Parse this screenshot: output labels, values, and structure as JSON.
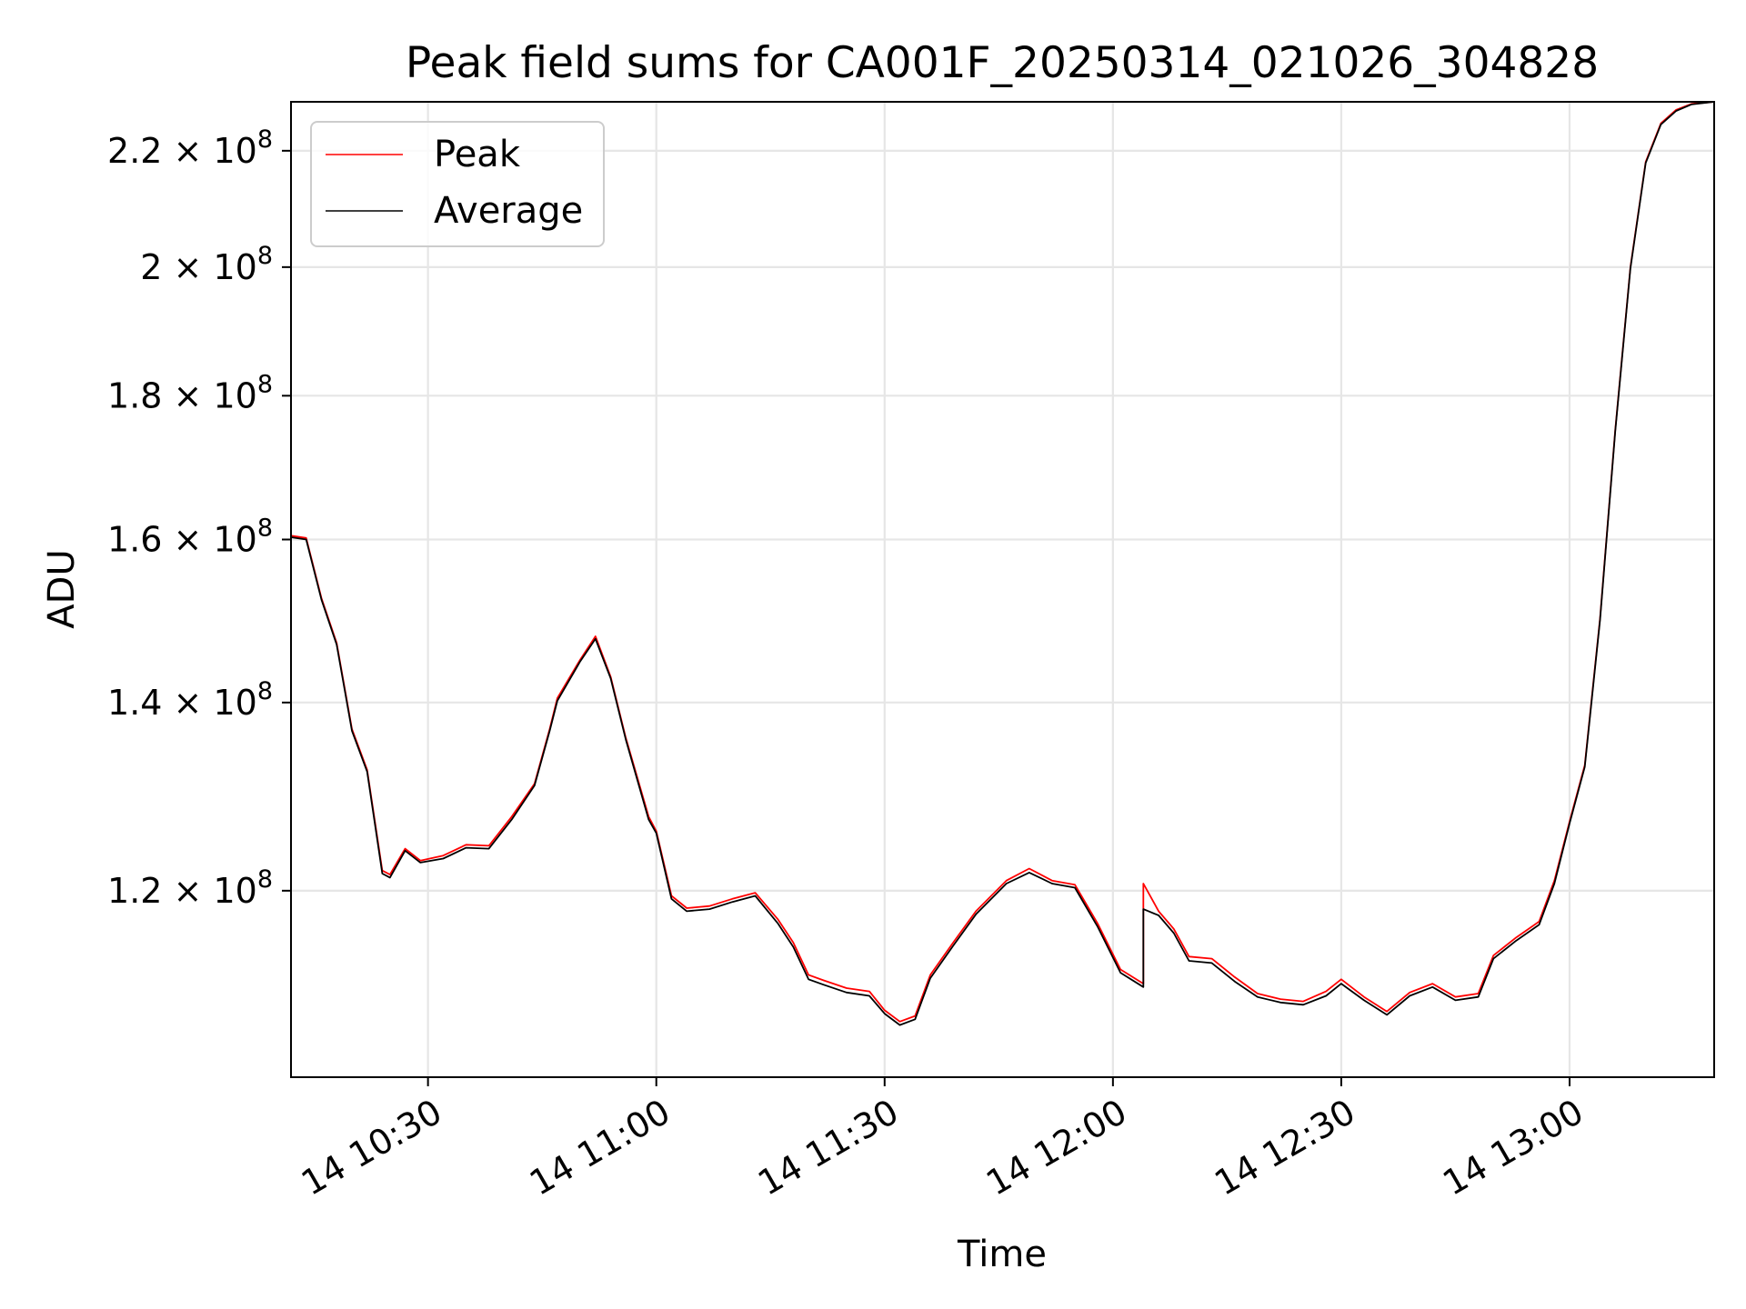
{
  "chart_data": {
    "type": "line",
    "title": "Peak field sums for CA001F_20250314_021026_304828",
    "xlabel": "Time",
    "ylabel": "ADU",
    "y_scale": "log",
    "ylim": [
      103000000,
      229000000
    ],
    "xlim": [
      "14 10:12",
      "14 13:19"
    ],
    "grid": true,
    "legend_position": "upper left",
    "x_ticks": [
      {
        "time": "14 10:30",
        "label": "14 10:30"
      },
      {
        "time": "14 11:00",
        "label": "14 11:00"
      },
      {
        "time": "14 11:30",
        "label": "14 11:30"
      },
      {
        "time": "14 12:00",
        "label": "14 12:00"
      },
      {
        "time": "14 12:30",
        "label": "14 12:30"
      },
      {
        "time": "14 13:00",
        "label": "14 13:00"
      }
    ],
    "y_ticks": [
      {
        "value": 120000000,
        "mantissa": "1.2",
        "base": "10",
        "exp": "8"
      },
      {
        "value": 140000000,
        "mantissa": "1.4",
        "base": "10",
        "exp": "8"
      },
      {
        "value": 160000000,
        "mantissa": "1.6",
        "base": "10",
        "exp": "8"
      },
      {
        "value": 180000000,
        "mantissa": "1.8",
        "base": "10",
        "exp": "8"
      },
      {
        "value": 200000000,
        "mantissa": "2",
        "base": "10",
        "exp": "8"
      },
      {
        "value": 220000000,
        "mantissa": "2.2",
        "base": "10",
        "exp": "8"
      }
    ],
    "series": [
      {
        "name": "Peak",
        "color": "#ff0000",
        "points": [
          [
            "14 10:12",
            160500000
          ],
          [
            "14 10:14",
            160200000
          ],
          [
            "14 10:16",
            152500000
          ],
          [
            "14 10:18",
            147000000
          ],
          [
            "14 10:20",
            137000000
          ],
          [
            "14 10:22",
            132500000
          ],
          [
            "14 10:24",
            122000000
          ],
          [
            "14 10:25",
            121600000
          ],
          [
            "14 10:27",
            124200000
          ],
          [
            "14 10:29",
            123000000
          ],
          [
            "14 10:32",
            123500000
          ],
          [
            "14 10:35",
            124600000
          ],
          [
            "14 10:38",
            124500000
          ],
          [
            "14 10:41",
            127500000
          ],
          [
            "14 10:44",
            131000000
          ],
          [
            "14 10:46",
            137000000
          ],
          [
            "14 10:47",
            140500000
          ],
          [
            "14 10:50",
            145000000
          ],
          [
            "14 10:52",
            147800000
          ],
          [
            "14 10:54",
            143000000
          ],
          [
            "14 10:56",
            136000000
          ],
          [
            "14 10:59",
            127500000
          ],
          [
            "14 11:00",
            126000000
          ],
          [
            "14 11:02",
            119500000
          ],
          [
            "14 11:04",
            118300000
          ],
          [
            "14 11:07",
            118500000
          ],
          [
            "14 11:10",
            119200000
          ],
          [
            "14 11:13",
            119800000
          ],
          [
            "14 11:16",
            117200000
          ],
          [
            "14 11:18",
            115000000
          ],
          [
            "14 11:20",
            112000000
          ],
          [
            "14 11:22",
            111500000
          ],
          [
            "14 11:25",
            110800000
          ],
          [
            "14 11:28",
            110500000
          ],
          [
            "14 11:30",
            108800000
          ],
          [
            "14 11:32",
            107800000
          ],
          [
            "14 11:34",
            108300000
          ],
          [
            "14 11:36",
            112000000
          ],
          [
            "14 11:39",
            115000000
          ],
          [
            "14 11:42",
            118000000
          ],
          [
            "14 11:46",
            121000000
          ],
          [
            "14 11:49",
            122200000
          ],
          [
            "14 11:52",
            121000000
          ],
          [
            "14 11:55",
            120600000
          ],
          [
            "14 11:58",
            116800000
          ],
          [
            "14 12:01",
            112500000
          ],
          [
            "14 12:04",
            111200000
          ],
          [
            "14 12:04",
            120700000
          ],
          [
            "14 12:06",
            118000000
          ],
          [
            "14 12:08",
            116300000
          ],
          [
            "14 12:10",
            113700000
          ],
          [
            "14 12:13",
            113500000
          ],
          [
            "14 12:16",
            111800000
          ],
          [
            "14 12:19",
            110300000
          ],
          [
            "14 12:22",
            109800000
          ],
          [
            "14 12:25",
            109600000
          ],
          [
            "14 12:28",
            110500000
          ],
          [
            "14 12:30",
            111600000
          ],
          [
            "14 12:33",
            110000000
          ],
          [
            "14 12:36",
            108700000
          ],
          [
            "14 12:39",
            110400000
          ],
          [
            "14 12:42",
            111200000
          ],
          [
            "14 12:45",
            110000000
          ],
          [
            "14 12:48",
            110300000
          ],
          [
            "14 12:50",
            113800000
          ],
          [
            "14 12:53",
            115500000
          ],
          [
            "14 12:56",
            117000000
          ],
          [
            "14 12:58",
            121000000
          ],
          [
            "14 13:00",
            127000000
          ],
          [
            "14 13:02",
            133000000
          ],
          [
            "14 13:04",
            150000000
          ],
          [
            "14 13:06",
            175000000
          ],
          [
            "14 13:08",
            200000000
          ],
          [
            "14 13:10",
            218000000
          ],
          [
            "14 13:12",
            225000000
          ],
          [
            "14 13:14",
            227500000
          ],
          [
            "14 13:16",
            228600000
          ],
          [
            "14 13:19",
            229000000
          ]
        ]
      },
      {
        "name": "Average",
        "color": "#000000",
        "points": [
          [
            "14 10:12",
            160300000
          ],
          [
            "14 10:14",
            160000000
          ],
          [
            "14 10:16",
            152300000
          ],
          [
            "14 10:18",
            146800000
          ],
          [
            "14 10:20",
            136800000
          ],
          [
            "14 10:22",
            132300000
          ],
          [
            "14 10:24",
            121700000
          ],
          [
            "14 10:25",
            121300000
          ],
          [
            "14 10:27",
            124000000
          ],
          [
            "14 10:29",
            122800000
          ],
          [
            "14 10:32",
            123200000
          ],
          [
            "14 10:35",
            124300000
          ],
          [
            "14 10:38",
            124200000
          ],
          [
            "14 10:41",
            127200000
          ],
          [
            "14 10:44",
            130800000
          ],
          [
            "14 10:46",
            136800000
          ],
          [
            "14 10:47",
            140200000
          ],
          [
            "14 10:50",
            144800000
          ],
          [
            "14 10:52",
            147500000
          ],
          [
            "14 10:54",
            142800000
          ],
          [
            "14 10:56",
            135800000
          ],
          [
            "14 10:59",
            127200000
          ],
          [
            "14 11:00",
            125800000
          ],
          [
            "14 11:02",
            119200000
          ],
          [
            "14 11:04",
            118000000
          ],
          [
            "14 11:07",
            118200000
          ],
          [
            "14 11:10",
            118900000
          ],
          [
            "14 11:13",
            119500000
          ],
          [
            "14 11:16",
            116800000
          ],
          [
            "14 11:18",
            114600000
          ],
          [
            "14 11:20",
            111600000
          ],
          [
            "14 11:22",
            111100000
          ],
          [
            "14 11:25",
            110400000
          ],
          [
            "14 11:28",
            110100000
          ],
          [
            "14 11:30",
            108500000
          ],
          [
            "14 11:32",
            107500000
          ],
          [
            "14 11:34",
            108000000
          ],
          [
            "14 11:36",
            111700000
          ],
          [
            "14 11:39",
            114700000
          ],
          [
            "14 11:42",
            117700000
          ],
          [
            "14 11:46",
            120700000
          ],
          [
            "14 11:49",
            121800000
          ],
          [
            "14 11:52",
            120700000
          ],
          [
            "14 11:55",
            120300000
          ],
          [
            "14 11:58",
            116500000
          ],
          [
            "14 12:01",
            112200000
          ],
          [
            "14 12:04",
            110900000
          ],
          [
            "14 12:04",
            118200000
          ],
          [
            "14 12:06",
            117600000
          ],
          [
            "14 12:08",
            115900000
          ],
          [
            "14 12:10",
            113300000
          ],
          [
            "14 12:13",
            113100000
          ],
          [
            "14 12:16",
            111400000
          ],
          [
            "14 12:19",
            110000000
          ],
          [
            "14 12:22",
            109500000
          ],
          [
            "14 12:25",
            109300000
          ],
          [
            "14 12:28",
            110100000
          ],
          [
            "14 12:30",
            111200000
          ],
          [
            "14 12:33",
            109700000
          ],
          [
            "14 12:36",
            108400000
          ],
          [
            "14 12:39",
            110100000
          ],
          [
            "14 12:42",
            110900000
          ],
          [
            "14 12:45",
            109700000
          ],
          [
            "14 12:48",
            110000000
          ],
          [
            "14 12:50",
            113500000
          ],
          [
            "14 12:53",
            115200000
          ],
          [
            "14 12:56",
            116700000
          ],
          [
            "14 12:58",
            120700000
          ],
          [
            "14 13:00",
            126800000
          ],
          [
            "14 13:02",
            132800000
          ],
          [
            "14 13:04",
            149800000
          ],
          [
            "14 13:06",
            174800000
          ],
          [
            "14 13:08",
            199800000
          ],
          [
            "14 13:10",
            217800000
          ],
          [
            "14 13:12",
            224800000
          ],
          [
            "14 13:14",
            227300000
          ],
          [
            "14 13:16",
            228500000
          ],
          [
            "14 13:19",
            229000000
          ]
        ]
      }
    ],
    "legend": [
      {
        "label": "Peak",
        "color": "#ff0000"
      },
      {
        "label": "Average",
        "color": "#000000"
      }
    ]
  }
}
